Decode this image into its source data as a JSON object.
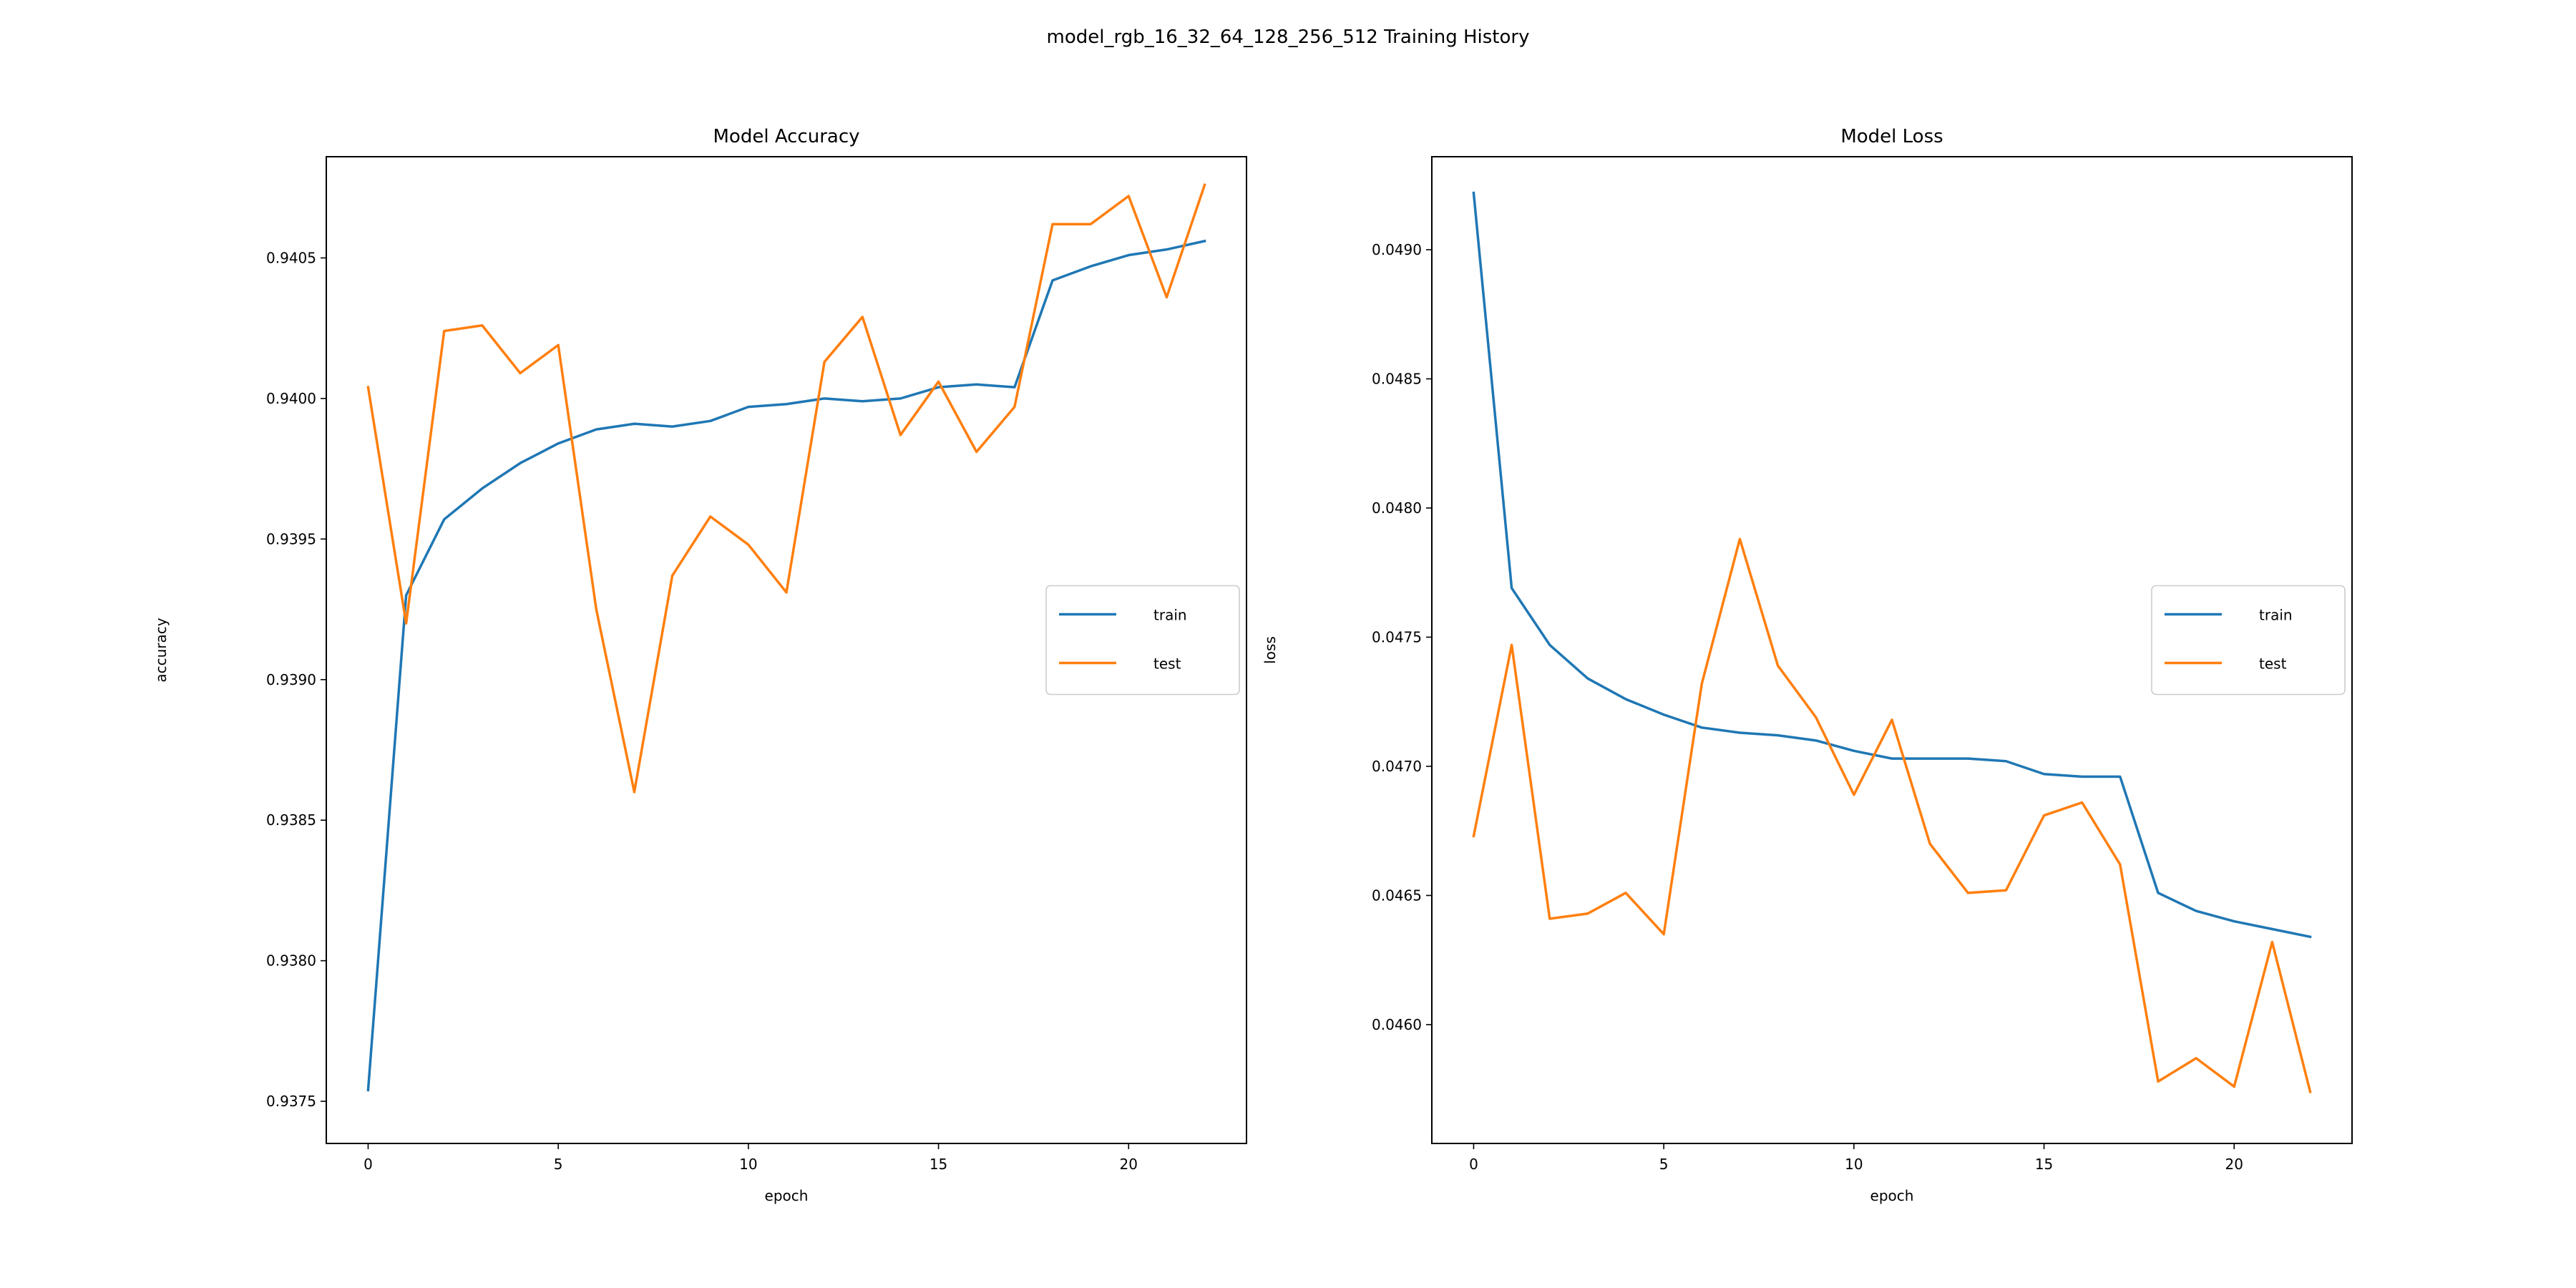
{
  "figure": {
    "suptitle": "model_rgb_16_32_64_128_256_512 Training History"
  },
  "colors": {
    "train": "#1f77b4",
    "test": "#ff7f0e",
    "axes": "#000000",
    "legend_border": "#cccccc"
  },
  "chart_data": [
    {
      "type": "line",
      "title": "Model Accuracy",
      "xlabel": "epoch",
      "ylabel": "accuracy",
      "xlim": [
        -1.1,
        23.1
      ],
      "ylim": [
        0.93735,
        0.94086
      ],
      "xticks": [
        0,
        5,
        10,
        15,
        20
      ],
      "yticks": [
        0.9375,
        0.938,
        0.9385,
        0.939,
        0.9395,
        0.94,
        0.9405
      ],
      "ytick_labels": [
        "0.9375",
        "0.9380",
        "0.9385",
        "0.9390",
        "0.9395",
        "0.9400",
        "0.9405"
      ],
      "grid": false,
      "legend_position": "center-right",
      "x": [
        0,
        1,
        2,
        3,
        4,
        5,
        6,
        7,
        8,
        9,
        10,
        11,
        12,
        13,
        14,
        15,
        16,
        17,
        18,
        19,
        20,
        21,
        22
      ],
      "series": [
        {
          "name": "train",
          "values": [
            0.93754,
            0.9393,
            0.93957,
            0.93968,
            0.93977,
            0.93984,
            0.93989,
            0.93991,
            0.9399,
            0.93992,
            0.93997,
            0.93998,
            0.94,
            0.93999,
            0.94,
            0.94004,
            0.94005,
            0.94004,
            0.94042,
            0.94047,
            0.94051,
            0.94053,
            0.94056
          ]
        },
        {
          "name": "test",
          "values": [
            0.94004,
            0.9392,
            0.94024,
            0.94026,
            0.94009,
            0.94019,
            0.93925,
            0.9386,
            0.93937,
            0.93958,
            0.93948,
            0.93931,
            0.94013,
            0.94029,
            0.93987,
            0.94006,
            0.93981,
            0.93997,
            0.94062,
            0.94062,
            0.94072,
            0.94036,
            0.94076
          ]
        }
      ]
    },
    {
      "type": "line",
      "title": "Model Loss",
      "xlabel": "epoch",
      "ylabel": "loss",
      "xlim": [
        -1.1,
        23.1
      ],
      "ylim": [
        0.04554,
        0.04936
      ],
      "xticks": [
        0,
        5,
        10,
        15,
        20
      ],
      "yticks": [
        0.046,
        0.0465,
        0.047,
        0.0475,
        0.048,
        0.0485,
        0.049
      ],
      "ytick_labels": [
        "0.0460",
        "0.0465",
        "0.0470",
        "0.0475",
        "0.0480",
        "0.0485",
        "0.0490"
      ],
      "grid": false,
      "legend_position": "center-right",
      "x": [
        0,
        1,
        2,
        3,
        4,
        5,
        6,
        7,
        8,
        9,
        10,
        11,
        12,
        13,
        14,
        15,
        16,
        17,
        18,
        19,
        20,
        21,
        22
      ],
      "series": [
        {
          "name": "train",
          "values": [
            0.04922,
            0.04769,
            0.04747,
            0.04734,
            0.04726,
            0.0472,
            0.04715,
            0.04713,
            0.04712,
            0.0471,
            0.04706,
            0.04703,
            0.04703,
            0.04703,
            0.04702,
            0.04697,
            0.04696,
            0.04696,
            0.04651,
            0.04644,
            0.0464,
            0.04637,
            0.04634
          ]
        },
        {
          "name": "test",
          "values": [
            0.04673,
            0.04747,
            0.04641,
            0.04643,
            0.04651,
            0.04635,
            0.04732,
            0.04788,
            0.04739,
            0.04719,
            0.04689,
            0.04718,
            0.0467,
            0.04651,
            0.04652,
            0.04681,
            0.04686,
            0.04662,
            0.04578,
            0.04587,
            0.04576,
            0.04632,
            0.04574
          ]
        }
      ]
    }
  ]
}
